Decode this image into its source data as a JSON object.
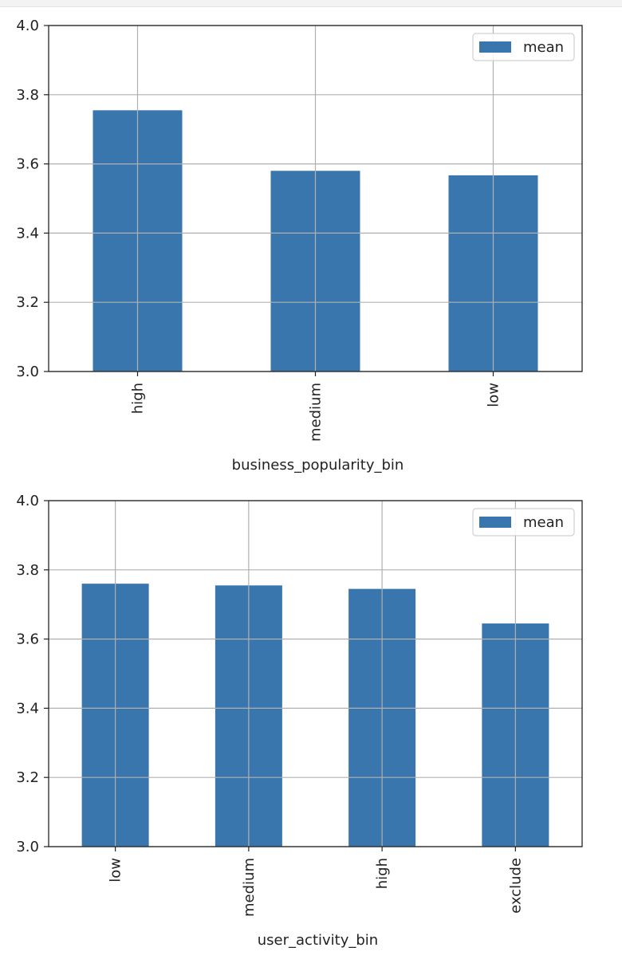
{
  "chart_data": [
    {
      "type": "bar",
      "categories": [
        "high",
        "medium",
        "low"
      ],
      "series": [
        {
          "name": "mean",
          "values": [
            3.755,
            3.58,
            3.567
          ]
        }
      ],
      "xlabel": "business_popularity_bin",
      "ylabel": "",
      "ylim": [
        3.0,
        4.0
      ],
      "yticks": [
        "3.0",
        "3.2",
        "3.4",
        "3.6",
        "3.8",
        "4.0"
      ],
      "grid": true,
      "legend": "top-right",
      "bar_color": "#3a76ae"
    },
    {
      "type": "bar",
      "categories": [
        "low",
        "medium",
        "high",
        "exclude"
      ],
      "series": [
        {
          "name": "mean",
          "values": [
            3.76,
            3.755,
            3.745,
            3.645
          ]
        }
      ],
      "xlabel": "user_activity_bin",
      "ylabel": "",
      "ylim": [
        3.0,
        4.0
      ],
      "yticks": [
        "3.0",
        "3.2",
        "3.4",
        "3.6",
        "3.8",
        "4.0"
      ],
      "grid": true,
      "legend": "top-right",
      "bar_color": "#3a76ae"
    }
  ]
}
